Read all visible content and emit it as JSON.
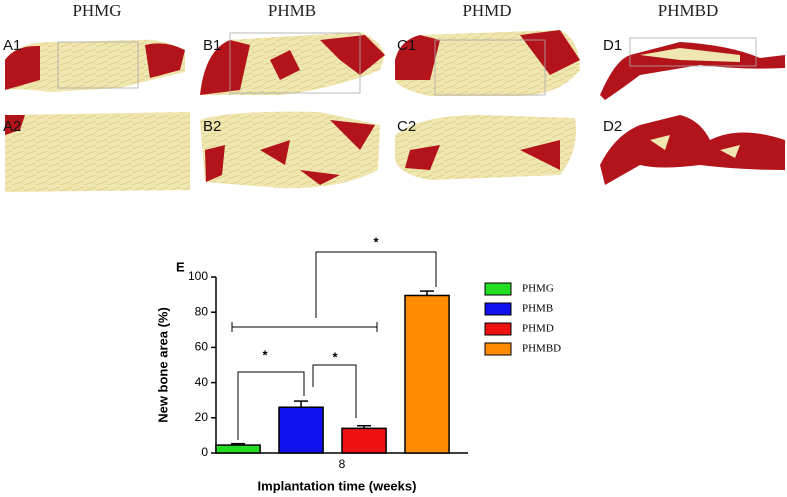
{
  "panels": {
    "columns": [
      "PHMG",
      "PHMB",
      "PHMD",
      "PHMBD"
    ],
    "row1": [
      "A1",
      "B1",
      "C1",
      "D1"
    ],
    "row2": [
      "A2",
      "B2",
      "C2",
      "D2"
    ]
  },
  "chart_data": {
    "type": "bar",
    "panel_label": "E",
    "xlabel": "Implantation time (weeks)",
    "ylabel": "New bone area (%)",
    "categories": [
      "8"
    ],
    "series": [
      {
        "name": "PHMG",
        "color": "#22dd22",
        "values": [
          4.5
        ],
        "errors": [
          0.8
        ]
      },
      {
        "name": "PHMB",
        "color": "#1111ee",
        "values": [
          26
        ],
        "errors": [
          3.5
        ]
      },
      {
        "name": "PHMD",
        "color": "#ee1111",
        "values": [
          14
        ],
        "errors": [
          1.5
        ]
      },
      {
        "name": "PHMBD",
        "color": "#ff8c00",
        "values": [
          89.5
        ],
        "errors": [
          2.5
        ]
      }
    ],
    "ylim": [
      0,
      100
    ],
    "yticks": [
      0,
      20,
      40,
      60,
      80,
      100
    ],
    "annotations": [
      "*",
      "*",
      "*"
    ]
  }
}
